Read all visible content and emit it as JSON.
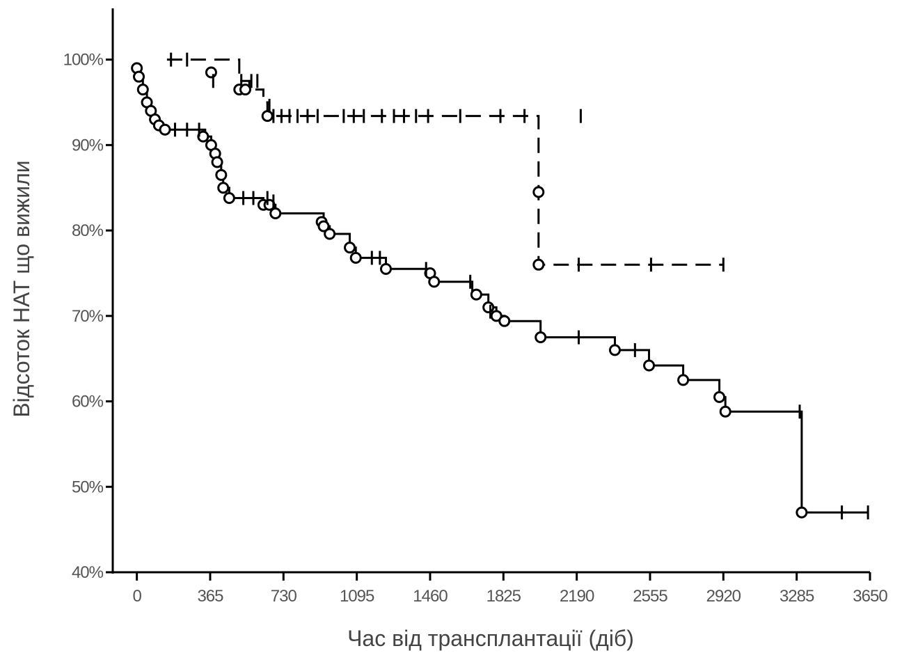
{
  "chart_data": {
    "type": "line",
    "subtype": "kaplan-meier step",
    "title": "",
    "xlabel": "Час від трансплантації (діб)",
    "ylabel": "Відсоток НАТ що вижили",
    "xlim": [
      -120,
      3650
    ],
    "ylim": [
      40,
      106
    ],
    "x_ticks": [
      0,
      365,
      730,
      1095,
      1460,
      1825,
      2190,
      2555,
      2920,
      3285,
      3650
    ],
    "y_ticks": [
      40,
      50,
      60,
      70,
      80,
      90,
      100
    ],
    "y_tick_labels": [
      "40%",
      "50%",
      "60%",
      "70%",
      "80%",
      "90%",
      "100%"
    ],
    "grid": false,
    "legend": "none",
    "series": [
      {
        "style": "solid",
        "color": "#000000",
        "steps": [
          [
            0,
            99
          ],
          [
            10,
            98
          ],
          [
            30,
            96.5
          ],
          [
            50,
            95
          ],
          [
            70,
            94
          ],
          [
            90,
            93
          ],
          [
            110,
            92.3
          ],
          [
            140,
            91.8
          ],
          [
            340,
            91
          ],
          [
            370,
            90
          ],
          [
            390,
            89
          ],
          [
            400,
            88
          ],
          [
            420,
            86.5
          ],
          [
            430,
            85
          ],
          [
            460,
            83.8
          ],
          [
            630,
            83
          ],
          [
            690,
            82
          ],
          [
            930,
            80.5
          ],
          [
            960,
            79.6
          ],
          [
            1060,
            78
          ],
          [
            1090,
            76.8
          ],
          [
            1240,
            75.5
          ],
          [
            1460,
            75
          ],
          [
            1480,
            74
          ],
          [
            1670,
            72.5
          ],
          [
            1750,
            71
          ],
          [
            1790,
            70
          ],
          [
            1830,
            69.4
          ],
          [
            2010,
            67.5
          ],
          [
            2380,
            66
          ],
          [
            2550,
            64.2
          ],
          [
            2720,
            62.5
          ],
          [
            2900,
            60.5
          ],
          [
            2930,
            58.8
          ],
          [
            3310,
            47
          ]
        ],
        "events": [
          [
            0,
            99
          ],
          [
            10,
            98
          ],
          [
            30,
            96.5
          ],
          [
            50,
            95
          ],
          [
            70,
            94
          ],
          [
            90,
            93
          ],
          [
            110,
            92.3
          ],
          [
            140,
            91.8
          ],
          [
            330,
            91
          ],
          [
            370,
            90
          ],
          [
            390,
            89
          ],
          [
            400,
            88
          ],
          [
            420,
            86.5
          ],
          [
            430,
            85
          ],
          [
            460,
            83.8
          ],
          [
            630,
            83
          ],
          [
            660,
            83
          ],
          [
            690,
            82
          ],
          [
            920,
            81
          ],
          [
            930,
            80.5
          ],
          [
            960,
            79.6
          ],
          [
            1060,
            78
          ],
          [
            1090,
            76.8
          ],
          [
            1240,
            75.5
          ],
          [
            1460,
            75
          ],
          [
            1480,
            74
          ],
          [
            1690,
            72.5
          ],
          [
            1750,
            71
          ],
          [
            1790,
            70
          ],
          [
            1830,
            69.4
          ],
          [
            2010,
            67.5
          ],
          [
            2380,
            66
          ],
          [
            2550,
            64.2
          ],
          [
            2720,
            62.5
          ],
          [
            2900,
            60.5
          ],
          [
            2930,
            58.8
          ],
          [
            3310,
            47
          ]
        ],
        "censored": [
          [
            190,
            91.8
          ],
          [
            250,
            91.8
          ],
          [
            310,
            91.8
          ],
          [
            530,
            83.8
          ],
          [
            580,
            83.8
          ],
          [
            650,
            83.8
          ],
          [
            680,
            83.4
          ],
          [
            1170,
            76.8
          ],
          [
            1210,
            76.8
          ],
          [
            1440,
            75.5
          ],
          [
            1660,
            74
          ],
          [
            1760,
            70.5
          ],
          [
            2200,
            67.5
          ],
          [
            2480,
            66
          ],
          [
            3300,
            58.8
          ],
          [
            3510,
            47
          ],
          [
            3640,
            47
          ]
        ],
        "end_x": 3640
      },
      {
        "style": "dashed",
        "color": "#000000",
        "steps": [
          [
            150,
            100
          ],
          [
            510,
            97.5
          ],
          [
            560,
            96.5
          ],
          [
            630,
            95
          ],
          [
            650,
            93.4
          ],
          [
            2000,
            84.5
          ],
          [
            2000,
            76
          ]
        ],
        "events": [
          [
            370,
            98.5
          ],
          [
            510,
            96.5
          ],
          [
            540,
            96.5
          ],
          [
            650,
            93.4
          ],
          [
            2000,
            84.5
          ],
          [
            2000,
            76
          ]
        ],
        "censored": [
          [
            170,
            100
          ],
          [
            250,
            100
          ],
          [
            380,
            97.5
          ],
          [
            520,
            97.5
          ],
          [
            570,
            97.5
          ],
          [
            600,
            97.5
          ],
          [
            660,
            94.6
          ],
          [
            680,
            93.4
          ],
          [
            720,
            93.4
          ],
          [
            760,
            93.4
          ],
          [
            800,
            93.4
          ],
          [
            850,
            93.4
          ],
          [
            900,
            93.4
          ],
          [
            1030,
            93.4
          ],
          [
            1080,
            93.4
          ],
          [
            1130,
            93.4
          ],
          [
            1220,
            93.4
          ],
          [
            1280,
            93.4
          ],
          [
            1330,
            93.4
          ],
          [
            1390,
            93.4
          ],
          [
            1450,
            93.4
          ],
          [
            1610,
            93.4
          ],
          [
            1810,
            93.4
          ],
          [
            1930,
            93.4
          ],
          [
            2210,
            93.4
          ],
          [
            2200,
            76
          ],
          [
            2560,
            76
          ],
          [
            2920,
            76
          ]
        ],
        "end_x": 2920
      }
    ]
  }
}
